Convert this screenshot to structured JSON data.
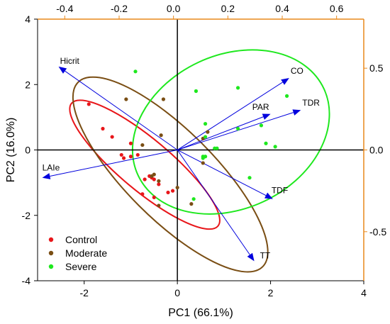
{
  "chart_data": {
    "type": "scatter",
    "subtype": "pca-biplot",
    "xlabel": "PC1 (66.1%)",
    "ylabel": "PC2 (16.0%)",
    "xlim": [
      -3,
      4
    ],
    "ylim": [
      -4,
      4
    ],
    "x_ticks": [
      -2,
      0,
      2,
      4
    ],
    "y_ticks": [
      -4,
      -2,
      0,
      2,
      4
    ],
    "x_tick_labels": [
      "-2",
      "0",
      "2",
      "4"
    ],
    "y_tick_labels": [
      "-4",
      "-2",
      "0",
      "2",
      "4"
    ],
    "top_axis": {
      "lim": [
        -0.5,
        0.7
      ],
      "ticks": [
        -0.4,
        -0.2,
        0.0,
        0.2,
        0.4,
        0.6
      ],
      "tick_labels": [
        "-0.4",
        "-0.2",
        "0.0",
        "0.2",
        "0.4",
        "0.6"
      ]
    },
    "right_axis": {
      "lim": [
        -0.8,
        0.8
      ],
      "ticks": [
        0.5,
        0.0,
        -0.5
      ],
      "tick_labels": [
        "0.5",
        "0.0",
        "-0.5"
      ],
      "color": "#e8891c"
    },
    "grid": false,
    "legend_position": "bottom-left",
    "colors": {
      "control": "#e8161a",
      "moderate": "#7a4e14",
      "severe": "#1ee81e",
      "vectors": "#0000dd",
      "secondary_axis": "#e8891c"
    },
    "series": [
      {
        "name": "Control",
        "color": "#e8161a",
        "points": [
          [
            -1.9,
            1.4
          ],
          [
            -1.6,
            0.65
          ],
          [
            -1.4,
            0.4
          ],
          [
            -1.2,
            -0.15
          ],
          [
            -1.15,
            -0.25
          ],
          [
            -1.0,
            0.2
          ],
          [
            -1.0,
            -0.2
          ],
          [
            -0.85,
            -0.15
          ],
          [
            -0.6,
            -0.8
          ],
          [
            -0.55,
            -0.85
          ],
          [
            -0.7,
            -0.9
          ],
          [
            -0.5,
            -0.9
          ],
          [
            -0.5,
            -1.45
          ],
          [
            -0.4,
            -1.05
          ],
          [
            -0.2,
            -1.3
          ],
          [
            -0.75,
            -1.35
          ],
          [
            -0.1,
            -1.25
          ]
        ],
        "ellipse": {
          "cx": -0.7,
          "cy": -0.45,
          "rx": 2.05,
          "ry": 0.55,
          "angle_deg": -40
        }
      },
      {
        "name": "Moderate",
        "color": "#7a4e14",
        "points": [
          [
            -1.1,
            1.55
          ],
          [
            -0.3,
            1.55
          ],
          [
            -0.35,
            0.45
          ],
          [
            -0.75,
            0.15
          ],
          [
            0.0,
            -1.15
          ],
          [
            -0.5,
            -0.75
          ],
          [
            -0.55,
            -0.8
          ],
          [
            -0.4,
            -0.95
          ],
          [
            -0.4,
            -1.7
          ],
          [
            0.3,
            -1.65
          ],
          [
            0.65,
            0.55
          ],
          [
            0.55,
            0.35
          ],
          [
            0.55,
            -0.4
          ]
        ],
        "ellipse": {
          "cx": -0.15,
          "cy": -0.75,
          "rx": 2.8,
          "ry": 0.95,
          "angle_deg": -45
        }
      },
      {
        "name": "Severe",
        "color": "#1ee81e",
        "points": [
          [
            -0.9,
            2.4
          ],
          [
            0.4,
            1.8
          ],
          [
            1.3,
            1.9
          ],
          [
            2.35,
            1.65
          ],
          [
            0.6,
            0.8
          ],
          [
            0.8,
            0.05
          ],
          [
            0.85,
            0.05
          ],
          [
            0.6,
            -0.2
          ],
          [
            1.3,
            0.65
          ],
          [
            1.8,
            0.75
          ],
          [
            2.1,
            0.1
          ],
          [
            1.9,
            0.2
          ],
          [
            0.6,
            0.4
          ],
          [
            1.55,
            -0.85
          ],
          [
            0.35,
            -1.5
          ],
          [
            0.55,
            -0.2
          ],
          [
            0.55,
            -0.25
          ]
        ],
        "ellipse": {
          "cx": 1.15,
          "cy": 0.55,
          "rx": 2.2,
          "ry": 1.65,
          "angle_deg": 25
        }
      }
    ],
    "vectors": [
      {
        "label": "Hicrit",
        "x": -2.55,
        "y": 2.55
      },
      {
        "label": "CO",
        "x": 2.4,
        "y": 2.2
      },
      {
        "label": "PAR",
        "x": 2.0,
        "y": 1.1
      },
      {
        "label": "TDR",
        "x": 2.65,
        "y": 1.22
      },
      {
        "label": "LAIe",
        "x": -2.9,
        "y": -0.85
      },
      {
        "label": "TDF",
        "x": 2.05,
        "y": -1.5
      },
      {
        "label": "TT",
        "x": 1.65,
        "y": -3.4
      }
    ]
  }
}
